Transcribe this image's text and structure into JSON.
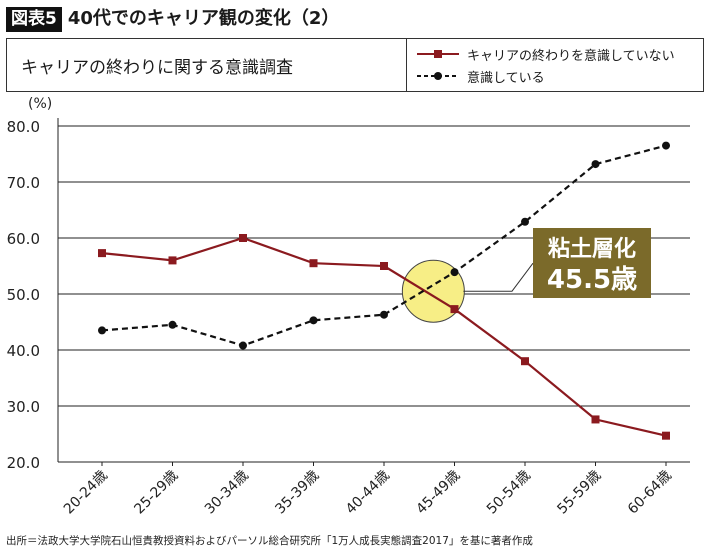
{
  "figure": {
    "badge": "図表5",
    "title": "40代でのキャリア観の変化（2）"
  },
  "header": {
    "caption": "キャリアの終わりに関する意識調査"
  },
  "callout": {
    "line1": "粘土層化",
    "line2": "45.5歳",
    "x": 45.5,
    "y": 50.5
  },
  "footnote": "出所＝法政大学大学院石山恒貴教授資料およびパーソル総合研究所「1万人成長実態調査2017」を基に著者作成",
  "colors": {
    "series_red": "#8b1a1f",
    "series_black": "#111111",
    "callout_bg": "#7b6a2a",
    "highlight": "#f7ee86"
  },
  "chart_data": {
    "type": "line",
    "categories": [
      "20-24歳",
      "25-29歳",
      "30-34歳",
      "35-39歳",
      "40-44歳",
      "45-49歳",
      "50-54歳",
      "55-59歳",
      "60-64歳"
    ],
    "series": [
      {
        "name": "キャリアの終わりを意識していない",
        "values": [
          57.3,
          56.0,
          60.0,
          55.5,
          55.0,
          47.3,
          38.0,
          27.6,
          24.7
        ],
        "color": "#8b1a1f",
        "line_style": "solid",
        "marker": "square"
      },
      {
        "name": "意識している",
        "values": [
          43.5,
          44.5,
          40.8,
          45.3,
          46.3,
          53.9,
          62.9,
          73.2,
          76.5
        ],
        "color": "#111111",
        "line_style": "dashed",
        "marker": "circle"
      }
    ],
    "ylabel": "(%)",
    "xlabel": "",
    "ylim": [
      20.0,
      80.0
    ],
    "yticks": [
      "20.0",
      "30.0",
      "40.0",
      "50.0",
      "60.0",
      "70.0",
      "80.0"
    ],
    "grid": true,
    "legend_position": "top-right"
  }
}
